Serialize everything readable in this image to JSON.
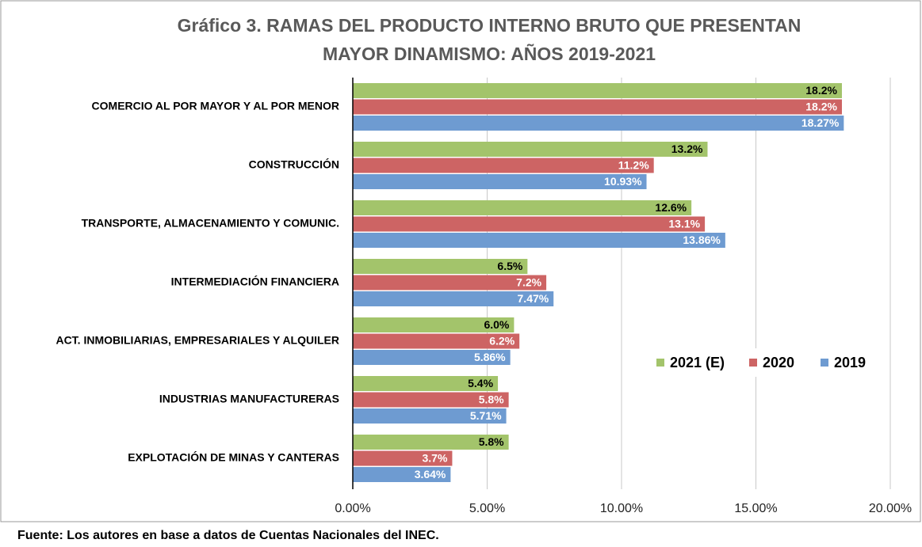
{
  "chart_data": {
    "type": "bar",
    "orientation": "horizontal",
    "title": [
      "Gráfico 3. RAMAS DEL PRODUCTO INTERNO BRUTO QUE PRESENTAN",
      "MAYOR DINAMISMO: AÑOS 2019-2021"
    ],
    "categories": [
      "COMERCIO AL POR MAYOR Y AL POR MENOR",
      "CONSTRUCCIÓN",
      "TRANSPORTE, ALMACENAMIENTO Y COMUNIC.",
      "INTERMEDIACIÓN  FINANCIERA",
      "ACT.  INMOBILIARIAS, EMPRESARIALES Y ALQUILER",
      "INDUSTRIAS MANUFACTURERAS",
      "EXPLOTACIÓN  DE  MINAS  Y  CANTERAS"
    ],
    "series": [
      {
        "name": "2021 (E)",
        "color": "#a3c46b",
        "values": [
          18.2,
          13.2,
          12.6,
          6.5,
          6.0,
          5.4,
          5.8
        ],
        "value_labels": [
          "18.2%",
          "13.2%",
          "12.6%",
          "6.5%",
          "6.0%",
          "5.4%",
          "5.8%"
        ]
      },
      {
        "name": "2020",
        "color": "#cd6464",
        "values": [
          18.2,
          11.2,
          13.1,
          7.2,
          6.2,
          5.8,
          3.7
        ],
        "value_labels": [
          "18.2%",
          "11.2%",
          "13.1%",
          "7.2%",
          "6.2%",
          "5.8%",
          "3.7%"
        ]
      },
      {
        "name": "2019",
        "color": "#6e9bd1",
        "values": [
          18.27,
          10.93,
          13.86,
          7.47,
          5.86,
          5.71,
          3.64
        ],
        "value_labels": [
          "18.27%",
          "10.93%",
          "13.86%",
          "7.47%",
          "5.86%",
          "5.71%",
          "3.64%"
        ]
      }
    ],
    "xlim": [
      0,
      20
    ],
    "xticks": [
      {
        "value": 0,
        "label": "0.00%"
      },
      {
        "value": 5,
        "label": "5.00%"
      },
      {
        "value": 10,
        "label": "10.00%"
      },
      {
        "value": 15,
        "label": "15.00%"
      },
      {
        "value": 20,
        "label": "20.00%"
      }
    ],
    "grid": true,
    "legend": "right",
    "note": "Fuente: Los autores en base a datos de Cuentas Nacionales del INEC."
  }
}
